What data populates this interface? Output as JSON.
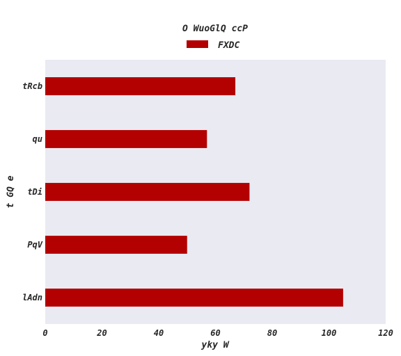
{
  "chart_data": {
    "type": "bar",
    "orientation": "horizontal",
    "title": "O WuoGlQ ccP",
    "xlabel": "yky W",
    "ylabel": "t  GQ e",
    "categories": [
      "tRcb",
      "qu",
      "tDi",
      "PqV",
      "lAdn"
    ],
    "series": [
      {
        "name": "FXDC",
        "values": [
          67,
          57,
          72,
          50,
          105
        ],
        "color": "#b30000"
      }
    ],
    "xlim": [
      0,
      120
    ],
    "xticks": [
      0,
      20,
      40,
      60,
      80,
      100,
      120
    ],
    "grid": false,
    "legend_position": "top-center",
    "background": "#eaeaf2"
  }
}
